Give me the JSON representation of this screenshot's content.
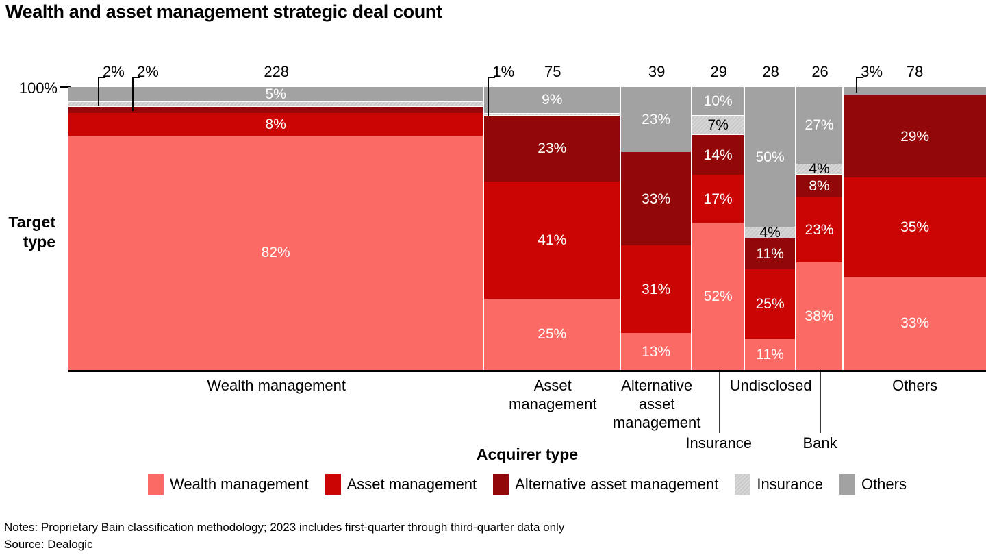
{
  "title": "Wealth and asset management strategic deal count",
  "y_axis": {
    "max_tick": "100%",
    "title_lines": [
      "Target",
      "type"
    ]
  },
  "x_axis": {
    "title": "Acquirer type"
  },
  "colors": {
    "wealth": "#fc6a65",
    "asset": "#cb0404",
    "alternative": "#920808",
    "insurance": "#d7d7d7",
    "insurance_hatch": "#c9c9c9",
    "others": "#a2a2a2",
    "axis_line": "#000000",
    "leader_line": "#3a3a3a"
  },
  "legend": [
    {
      "key": "wealth",
      "label": "Wealth management"
    },
    {
      "key": "asset",
      "label": "Asset management"
    },
    {
      "key": "alternative",
      "label": "Alternative asset management"
    },
    {
      "key": "insurance",
      "label": "Insurance"
    },
    {
      "key": "others",
      "label": "Others"
    }
  ],
  "notes": "Notes: Proprietary Bain classification methodology; 2023 includes first-quarter through third-quarter data only",
  "source": "Source: Dealogic",
  "chart_data": {
    "type": "marimekko",
    "title": "Wealth and asset management strategic deal count",
    "xlabel": "Acquirer type",
    "ylabel": "Target type",
    "y_axis_max_label": "100%",
    "column_width_basis": "deal count",
    "total_count": 503,
    "stack_order_top_to_bottom": [
      "others",
      "insurance",
      "alternative",
      "asset",
      "wealth"
    ],
    "columns": [
      {
        "category": "Wealth management",
        "count": 228,
        "axis_row": 1,
        "axis_label_lines": [
          "Wealth management"
        ],
        "segments": [
          {
            "key": "others",
            "pct": 5,
            "label": "5%"
          },
          {
            "key": "insurance",
            "pct": 2,
            "label": "2%",
            "callout": true
          },
          {
            "key": "alternative",
            "pct": 2,
            "label": "2%",
            "callout": true
          },
          {
            "key": "asset",
            "pct": 8,
            "label": "8%"
          },
          {
            "key": "wealth",
            "pct": 82,
            "label": "82%"
          }
        ]
      },
      {
        "category": "Asset management",
        "count": 75,
        "axis_row": 1,
        "axis_label_lines": [
          "Asset",
          "management"
        ],
        "segments": [
          {
            "key": "others",
            "pct": 9,
            "label": "9%"
          },
          {
            "key": "insurance",
            "pct": 1,
            "label": "1%",
            "callout": true
          },
          {
            "key": "alternative",
            "pct": 23,
            "label": "23%"
          },
          {
            "key": "asset",
            "pct": 41,
            "label": "41%"
          },
          {
            "key": "wealth",
            "pct": 25,
            "label": "25%"
          }
        ]
      },
      {
        "category": "Alternative asset management",
        "count": 39,
        "axis_row": 1,
        "axis_label_lines": [
          "Alternative",
          "asset",
          "management"
        ],
        "segments": [
          {
            "key": "others",
            "pct": 23,
            "label": "23%"
          },
          {
            "key": "alternative",
            "pct": 33,
            "label": "33%"
          },
          {
            "key": "asset",
            "pct": 31,
            "label": "31%"
          },
          {
            "key": "wealth",
            "pct": 13,
            "label": "13%"
          }
        ]
      },
      {
        "category": "Insurance",
        "count": 29,
        "axis_row": 2,
        "axis_label_lines": [
          "Insurance"
        ],
        "segments": [
          {
            "key": "others",
            "pct": 10,
            "label": "10%"
          },
          {
            "key": "insurance",
            "pct": 7,
            "label": "7%"
          },
          {
            "key": "alternative",
            "pct": 14,
            "label": "14%"
          },
          {
            "key": "asset",
            "pct": 17,
            "label": "17%"
          },
          {
            "key": "wealth",
            "pct": 52,
            "label": "52%"
          }
        ]
      },
      {
        "category": "Undisclosed",
        "count": 28,
        "axis_row": 1,
        "axis_label_lines": [
          "Undisclosed"
        ],
        "segments": [
          {
            "key": "others",
            "pct": 50,
            "label": "50%"
          },
          {
            "key": "insurance",
            "pct": 4,
            "label": "4%"
          },
          {
            "key": "alternative",
            "pct": 11,
            "label": "11%"
          },
          {
            "key": "asset",
            "pct": 25,
            "label": "25%"
          },
          {
            "key": "wealth",
            "pct": 11,
            "label": "11%"
          }
        ]
      },
      {
        "category": "Bank",
        "count": 26,
        "axis_row": 2,
        "axis_label_lines": [
          "Bank"
        ],
        "segments": [
          {
            "key": "others",
            "pct": 27,
            "label": "27%"
          },
          {
            "key": "insurance",
            "pct": 4,
            "label": "4%"
          },
          {
            "key": "alternative",
            "pct": 8,
            "label": "8%"
          },
          {
            "key": "asset",
            "pct": 23,
            "label": "23%"
          },
          {
            "key": "wealth",
            "pct": 38,
            "label": "38%"
          }
        ]
      },
      {
        "category": "Others",
        "count": 78,
        "axis_row": 1,
        "axis_label_lines": [
          "Others"
        ],
        "segments": [
          {
            "key": "others",
            "pct": 3,
            "label": "3%",
            "callout": true
          },
          {
            "key": "alternative",
            "pct": 29,
            "label": "29%"
          },
          {
            "key": "asset",
            "pct": 35,
            "label": "35%"
          },
          {
            "key": "wealth",
            "pct": 33,
            "label": "33%"
          }
        ]
      }
    ]
  }
}
